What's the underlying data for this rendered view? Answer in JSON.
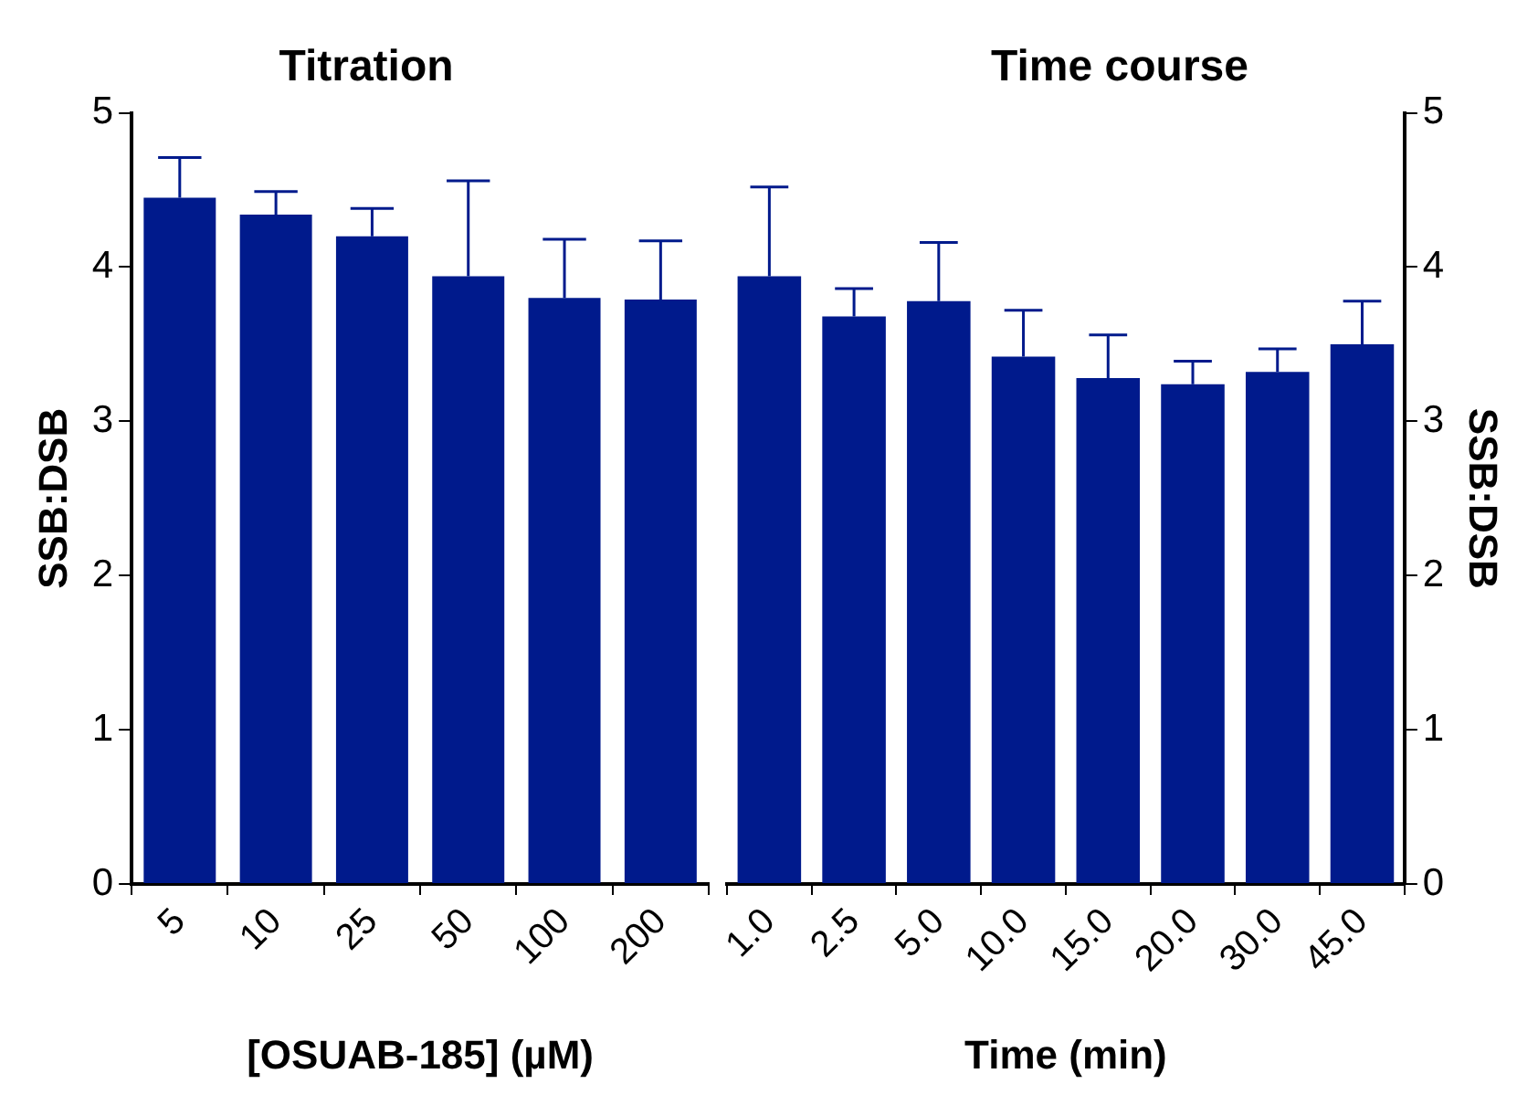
{
  "chart_data": [
    {
      "type": "bar",
      "title": "Titration",
      "xlabel": "[OSUAB-185] (µM)",
      "ylabel": "SSB:DSB",
      "categories": [
        "5",
        "10",
        "25",
        "50",
        "100",
        "200"
      ],
      "series": [
        {
          "color": "#001a8c",
          "values": [
            4.45,
            4.34,
            4.2,
            3.94,
            3.8,
            3.79
          ],
          "errors": [
            [
              4.45,
              4.71
            ],
            [
              4.34,
              4.49
            ],
            [
              4.2,
              4.38
            ],
            [
              3.94,
              4.56
            ],
            [
              3.8,
              4.18
            ],
            [
              3.79,
              4.17
            ]
          ]
        }
      ],
      "ylim": [
        0,
        5
      ],
      "yticks": [
        0,
        1,
        2,
        3,
        4,
        5
      ],
      "grid": false
    },
    {
      "type": "bar",
      "title": "Time course",
      "xlabel": "Time (min)",
      "y2label": "SSB:DSB",
      "categories": [
        "1.0",
        "2.5",
        "5.0",
        "10.0",
        "15.0",
        "20.0",
        "30.0",
        "45.0"
      ],
      "series": [
        {
          "color": "#001a8c",
          "axis": "y2",
          "values": [
            3.94,
            3.68,
            3.78,
            3.42,
            3.28,
            3.24,
            3.32,
            3.5
          ],
          "errors": [
            [
              3.94,
              4.52
            ],
            [
              3.68,
              3.86
            ],
            [
              3.78,
              4.16
            ],
            [
              3.42,
              3.72
            ],
            [
              3.28,
              3.56
            ],
            [
              3.24,
              3.39
            ],
            [
              3.32,
              3.47
            ],
            [
              3.5,
              3.78
            ]
          ]
        }
      ],
      "y2lim": [
        0,
        5
      ],
      "y2ticks": [
        0,
        1,
        2,
        3,
        4,
        5
      ],
      "grid": false
    }
  ]
}
